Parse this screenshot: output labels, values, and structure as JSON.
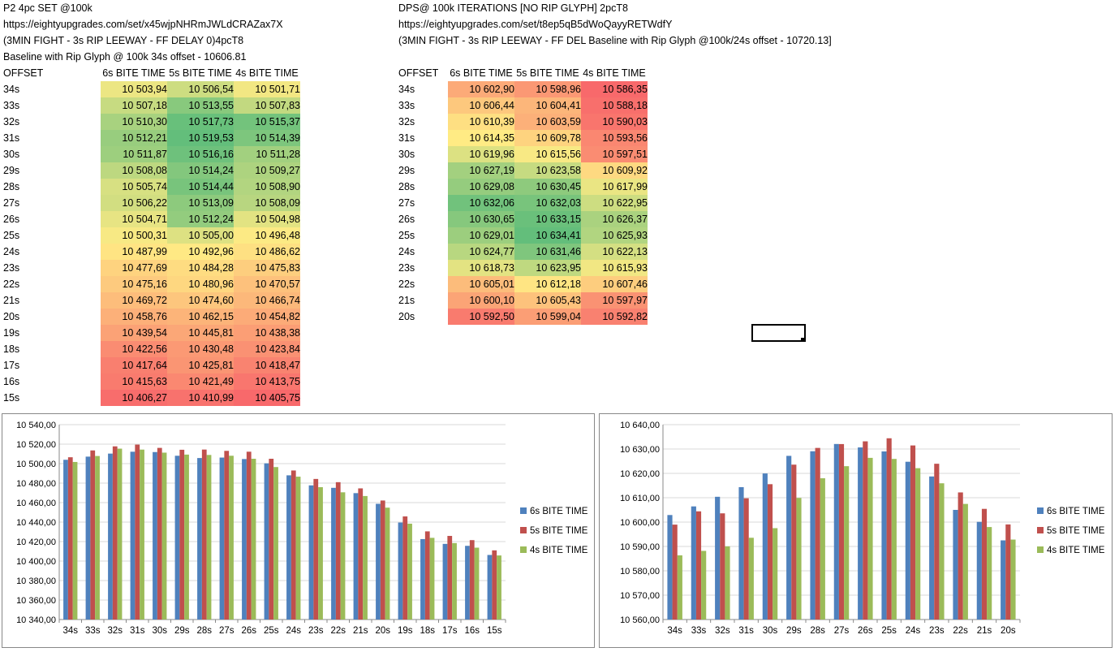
{
  "left": {
    "title_lines": [
      "P2 4pc SET @100k",
      "https://eightyupgrades.com/set/x45wjpNHRmJWLdCRAZax7X",
      "(3MIN FIGHT - 3s RIP LEEWAY - FF DELAY 0)4pcT8",
      "Baseline with Rip Glyph @ 100k 34s offset - 10606.81"
    ],
    "headers": [
      "OFFSET",
      "6s BITE TIME",
      "5s BITE TIME",
      "4s BITE TIME"
    ],
    "rows": [
      [
        "34s",
        "10 503,94",
        "10 506,54",
        "10 501,71"
      ],
      [
        "33s",
        "10 507,18",
        "10 513,55",
        "10 507,83"
      ],
      [
        "32s",
        "10 510,30",
        "10 517,73",
        "10 515,37"
      ],
      [
        "31s",
        "10 512,21",
        "10 519,53",
        "10 514,39"
      ],
      [
        "30s",
        "10 511,87",
        "10 516,16",
        "10 511,28"
      ],
      [
        "29s",
        "10 508,08",
        "10 514,24",
        "10 509,27"
      ],
      [
        "28s",
        "10 505,74",
        "10 514,44",
        "10 508,90"
      ],
      [
        "27s",
        "10 506,22",
        "10 513,09",
        "10 508,09"
      ],
      [
        "26s",
        "10 504,71",
        "10 512,24",
        "10 504,98"
      ],
      [
        "25s",
        "10 500,31",
        "10 505,00",
        "10 496,48"
      ],
      [
        "24s",
        "10 487,99",
        "10 492,96",
        "10 486,62"
      ],
      [
        "23s",
        "10 477,69",
        "10 484,28",
        "10 475,83"
      ],
      [
        "22s",
        "10 475,16",
        "10 480,96",
        "10 470,57"
      ],
      [
        "21s",
        "10 469,72",
        "10 474,60",
        "10 466,74"
      ],
      [
        "20s",
        "10 458,76",
        "10 462,15",
        "10 454,82"
      ],
      [
        "19s",
        "10 439,54",
        "10 445,81",
        "10 438,38"
      ],
      [
        "18s",
        "10 422,56",
        "10 430,48",
        "10 423,84"
      ],
      [
        "17s",
        "10 417,64",
        "10 425,81",
        "10 418,47"
      ],
      [
        "16s",
        "10 415,63",
        "10 421,49",
        "10 413,75"
      ],
      [
        "15s",
        "10 406,27",
        "10 410,99",
        "10 405,75"
      ]
    ]
  },
  "right": {
    "title_lines": [
      "DPS@ 100k ITERATIONS [NO RIP GLYPH] 2pcT8",
      "https://eightyupgrades.com/set/t8ep5qB5dWoQayyRETWdfY",
      "(3MIN FIGHT - 3s RIP LEEWAY - FF DEL Baseline with Rip Glyph @100k/24s offset - 10720.13]"
    ],
    "headers": [
      "OFFSET",
      "6s BITE TIME",
      "5s BITE TIME",
      "4s BITE TIME"
    ],
    "rows": [
      [
        "34s",
        "10 602,90",
        "10 598,96",
        "10 586,35"
      ],
      [
        "33s",
        "10 606,44",
        "10 604,41",
        "10 588,18"
      ],
      [
        "32s",
        "10 610,39",
        "10 603,59",
        "10 590,03"
      ],
      [
        "31s",
        "10 614,35",
        "10 609,78",
        "10 593,56"
      ],
      [
        "30s",
        "10 619,96",
        "10 615,56",
        "10 597,51"
      ],
      [
        "29s",
        "10 627,19",
        "10 623,58",
        "10 609,92"
      ],
      [
        "28s",
        "10 629,08",
        "10 630,45",
        "10 617,99"
      ],
      [
        "27s",
        "10 632,06",
        "10 632,03",
        "10 622,95"
      ],
      [
        "26s",
        "10 630,65",
        "10 633,15",
        "10 626,37"
      ],
      [
        "25s",
        "10 629,01",
        "10 634,41",
        "10 625,93"
      ],
      [
        "24s",
        "10 624,77",
        "10 631,46",
        "10 622,13"
      ],
      [
        "23s",
        "10 618,73",
        "10 623,95",
        "10 615,93"
      ],
      [
        "22s",
        "10 605,01",
        "10 612,18",
        "10 607,46"
      ],
      [
        "21s",
        "10 600,10",
        "10 605,43",
        "10 597,97"
      ],
      [
        "20s",
        "10 592,50",
        "10 599,04",
        "10 592,82"
      ]
    ]
  },
  "chart_data": [
    {
      "type": "bar",
      "categories": [
        "34s",
        "33s",
        "32s",
        "31s",
        "30s",
        "29s",
        "28s",
        "27s",
        "26s",
        "25s",
        "24s",
        "23s",
        "22s",
        "21s",
        "20s",
        "19s",
        "18s",
        "17s",
        "16s",
        "15s"
      ],
      "series": [
        {
          "name": "6s BITE TIME",
          "color": "#4F81BD",
          "values": [
            10503.94,
            10507.18,
            10510.3,
            10512.21,
            10511.87,
            10508.08,
            10505.74,
            10506.22,
            10504.71,
            10500.31,
            10487.99,
            10477.69,
            10475.16,
            10469.72,
            10458.76,
            10439.54,
            10422.56,
            10417.64,
            10415.63,
            10406.27
          ]
        },
        {
          "name": "5s BITE TIME",
          "color": "#C0504D",
          "values": [
            10506.54,
            10513.55,
            10517.73,
            10519.53,
            10516.16,
            10514.24,
            10514.44,
            10513.09,
            10512.24,
            10505.0,
            10492.96,
            10484.28,
            10480.96,
            10474.6,
            10462.15,
            10445.81,
            10430.48,
            10425.81,
            10421.49,
            10410.99
          ]
        },
        {
          "name": "4s BITE TIME",
          "color": "#9BBB59",
          "values": [
            10501.71,
            10507.83,
            10515.37,
            10514.39,
            10511.28,
            10509.27,
            10508.9,
            10508.09,
            10504.98,
            10496.48,
            10486.62,
            10475.83,
            10470.57,
            10466.74,
            10454.82,
            10438.38,
            10423.84,
            10418.47,
            10413.75,
            10405.75
          ]
        }
      ],
      "ylim": [
        10340,
        10540
      ],
      "ytick_step": 20,
      "ytick_labels": [
        "10 340,00",
        "10 360,00",
        "10 380,00",
        "10 400,00",
        "10 420,00",
        "10 440,00",
        "10 460,00",
        "10 480,00",
        "10 500,00",
        "10 520,00",
        "10 540,00"
      ],
      "grid": true,
      "legend": "right",
      "title": "",
      "xlabel": "",
      "ylabel": ""
    },
    {
      "type": "bar",
      "categories": [
        "34s",
        "33s",
        "32s",
        "31s",
        "30s",
        "29s",
        "28s",
        "27s",
        "26s",
        "25s",
        "24s",
        "23s",
        "22s",
        "21s",
        "20s"
      ],
      "series": [
        {
          "name": "6s BITE TIME",
          "color": "#4F81BD",
          "values": [
            10602.9,
            10606.44,
            10610.39,
            10614.35,
            10619.96,
            10627.19,
            10629.08,
            10632.06,
            10630.65,
            10629.01,
            10624.77,
            10618.73,
            10605.01,
            10600.1,
            10592.5
          ]
        },
        {
          "name": "5s BITE TIME",
          "color": "#C0504D",
          "values": [
            10598.96,
            10604.41,
            10603.59,
            10609.78,
            10615.56,
            10623.58,
            10630.45,
            10632.03,
            10633.15,
            10634.41,
            10631.46,
            10623.95,
            10612.18,
            10605.43,
            10599.04
          ]
        },
        {
          "name": "4s BITE TIME",
          "color": "#9BBB59",
          "values": [
            10586.35,
            10588.18,
            10590.03,
            10593.56,
            10597.51,
            10609.92,
            10617.99,
            10622.95,
            10626.37,
            10625.93,
            10622.13,
            10615.93,
            10607.46,
            10597.97,
            10592.82
          ]
        }
      ],
      "ylim": [
        10560,
        10640
      ],
      "ytick_step": 10,
      "ytick_labels": [
        "10 560,00",
        "10 570,00",
        "10 580,00",
        "10 590,00",
        "10 600,00",
        "10 610,00",
        "10 620,00",
        "10 630,00",
        "10 640,00"
      ],
      "grid": true,
      "legend": "right",
      "title": "",
      "xlabel": "",
      "ylabel": ""
    }
  ]
}
